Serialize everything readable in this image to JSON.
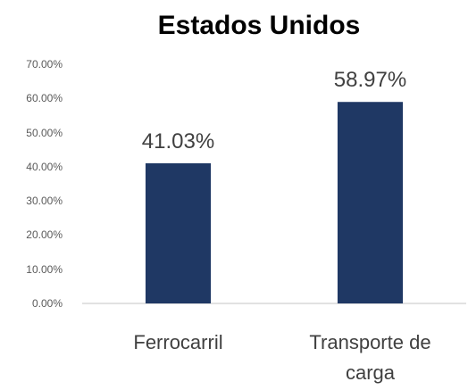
{
  "chart_data": {
    "type": "bar",
    "title": "Estados Unidos",
    "categories": [
      "Ferrocarril",
      "Transporte de carga"
    ],
    "values": [
      41.03,
      58.97
    ],
    "value_labels": [
      "41.03%",
      "58.97%"
    ],
    "color": "#1f3864",
    "ylim": [
      0,
      70
    ],
    "yticks": [
      {
        "value": 0,
        "label": "0.00%"
      },
      {
        "value": 10,
        "label": "10.00%"
      },
      {
        "value": 20,
        "label": "20.00%"
      },
      {
        "value": 30,
        "label": "30.00%"
      },
      {
        "value": 40,
        "label": "40.00%"
      },
      {
        "value": 50,
        "label": "50.00%"
      },
      {
        "value": 60,
        "label": "60.00%"
      },
      {
        "value": 70,
        "label": "70.00%"
      }
    ],
    "grid": false
  }
}
